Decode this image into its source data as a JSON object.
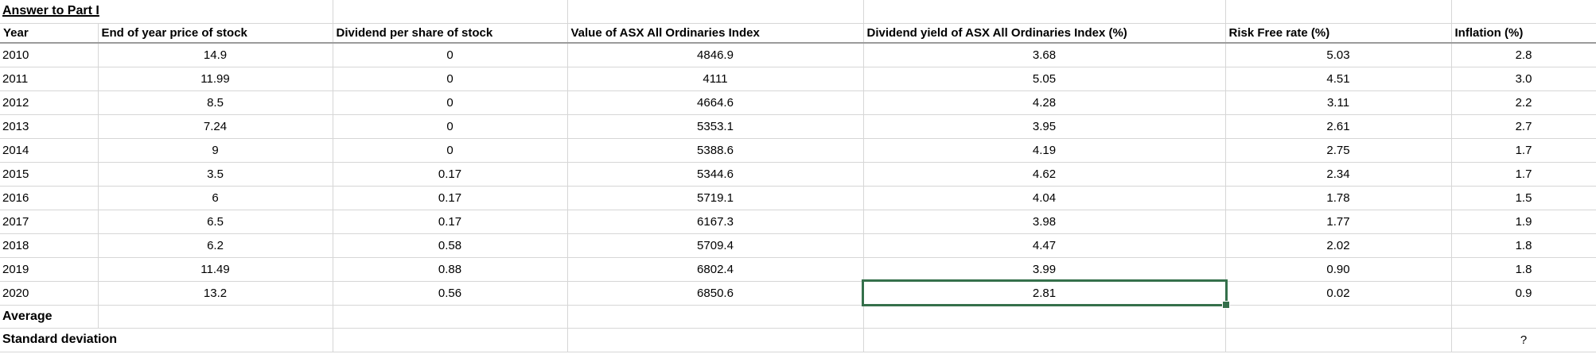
{
  "title": "Answer to Part I",
  "table": {
    "headers": [
      "Year",
      "End of year price of stock",
      "Dividend per share of stock",
      "Value of ASX All Ordinaries Index",
      "Dividend yield of ASX All Ordinaries Index (%)",
      "Risk Free rate (%)",
      "Inflation (%)"
    ],
    "rows": [
      {
        "cells": [
          "2010",
          "14.9",
          "0",
          "4846.9",
          "3.68",
          "5.03",
          "2.8"
        ]
      },
      {
        "cells": [
          "2011",
          "11.99",
          "0",
          "4111",
          "5.05",
          "4.51",
          "3.0"
        ]
      },
      {
        "cells": [
          "2012",
          "8.5",
          "0",
          "4664.6",
          "4.28",
          "3.11",
          "2.2"
        ]
      },
      {
        "cells": [
          "2013",
          "7.24",
          "0",
          "5353.1",
          "3.95",
          "2.61",
          "2.7"
        ]
      },
      {
        "cells": [
          "2014",
          "9",
          "0",
          "5388.6",
          "4.19",
          "2.75",
          "1.7"
        ]
      },
      {
        "cells": [
          "2015",
          "3.5",
          "0.17",
          "5344.6",
          "4.62",
          "2.34",
          "1.7"
        ]
      },
      {
        "cells": [
          "2016",
          "6",
          "0.17",
          "5719.1",
          "4.04",
          "1.78",
          "1.5"
        ]
      },
      {
        "cells": [
          "2017",
          "6.5",
          "0.17",
          "6167.3",
          "3.98",
          "1.77",
          "1.9"
        ]
      },
      {
        "cells": [
          "2018",
          "6.2",
          "0.58",
          "5709.4",
          "4.47",
          "2.02",
          "1.8"
        ]
      },
      {
        "cells": [
          "2019",
          "11.49",
          "0.88",
          "6802.4",
          "3.99",
          "0.90",
          "1.8"
        ]
      },
      {
        "cells": [
          "2020",
          "13.2",
          "0.56",
          "6850.6",
          "2.81",
          "0.02",
          "0.9"
        ]
      }
    ],
    "summary_rows": [
      {
        "cells": [
          "Average",
          "",
          "",
          "",
          "",
          "",
          ""
        ]
      },
      {
        "cells": [
          "Standard deviation",
          "",
          "",
          "",
          "",
          "",
          "?"
        ]
      }
    ]
  },
  "selection": {
    "row_year": "2020",
    "column": "Dividend yield of ASX All Ordinaries Index (%)",
    "value": "2.81",
    "row_index": 10,
    "col_index": 4
  },
  "colors": {
    "selection_green": "#35704B",
    "gridline": "#D6D6D6",
    "header_rule": "#9B9B9B",
    "background": "#FFFFFF",
    "text": "#000000"
  }
}
